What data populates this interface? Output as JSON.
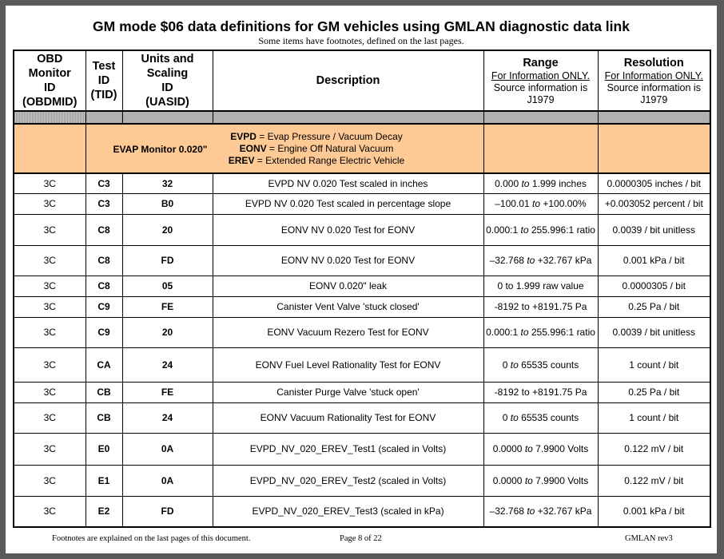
{
  "title": "GM mode $06 data definitions for GM vehicles using GMLAN diagnostic data link",
  "subtitle": "Some items have footnotes, defined on the last pages.",
  "columns": {
    "obdmid": [
      "OBD",
      "Monitor",
      "ID",
      "(OBDMID)"
    ],
    "tid": [
      "Test",
      "ID",
      "(TID)"
    ],
    "uasid": [
      "Units and",
      "Scaling",
      "ID",
      "(UASID)"
    ],
    "description": "Description",
    "range": {
      "title": "Range",
      "note": "For Information ONLY.",
      "source": "Source information is J1979"
    },
    "resolution": {
      "title": "Resolution",
      "note": "For Information ONLY.",
      "source": "Source information is J1979"
    }
  },
  "section": {
    "label": "EVAP Monitor 0.020\"",
    "lines": [
      {
        "abbr": "EVPD",
        "text": " = Evap Pressure / Vacuum Decay"
      },
      {
        "abbr": "EONV",
        "text": " = Engine Off Natural Vacuum"
      },
      {
        "abbr": "EREV",
        "text": " = Extended Range Electric Vehicle"
      }
    ],
    "color": "#fdca96"
  },
  "rows": [
    {
      "obdmid": "3C",
      "tid": "C3",
      "uasid": "32",
      "desc": "EVPD NV 0.020 Test scaled in inches",
      "r1": "0.000",
      "to": "to",
      "r2": "1.999 inches",
      "italic": true,
      "res": "0.0000305 inches / bit"
    },
    {
      "obdmid": "3C",
      "tid": "C3",
      "uasid": "B0",
      "desc": "EVPD NV 0.020 Test scaled in percentage slope",
      "r1": "–100.01",
      "to": "to",
      "r2": "+100.00%",
      "italic": true,
      "res": "+0.003052 percent / bit"
    },
    {
      "obdmid": "3C",
      "tid": "C8",
      "uasid": "20",
      "desc": "EONV NV 0.020 Test for EONV",
      "r1": "0.000:1",
      "to": "to",
      "r2": "255.996:1  ratio",
      "italic": true,
      "res": "0.0039 / bit unitless"
    },
    {
      "obdmid": "3C",
      "tid": "C8",
      "uasid": "FD",
      "desc": "EONV NV 0.020 Test for EONV",
      "r1": "–32.768",
      "to": "to",
      "r2": "+32.767 kPa",
      "italic": true,
      "res": "0.001 kPa / bit"
    },
    {
      "obdmid": "3C",
      "tid": "C8",
      "uasid": "05",
      "desc": "EONV 0.020\" leak",
      "r1": "0",
      "to": "to",
      "r2": "1.999 raw value",
      "italic": false,
      "res": "0.0000305 / bit"
    },
    {
      "obdmid": "3C",
      "tid": "C9",
      "uasid": "FE",
      "desc": "Canister Vent Valve 'stuck closed'",
      "r1": "-8192",
      "to": "to",
      "r2": "+8191.75 Pa",
      "italic": false,
      "res": "0.25 Pa / bit"
    },
    {
      "obdmid": "3C",
      "tid": "C9",
      "uasid": "20",
      "desc": "EONV Vacuum Rezero Test for EONV",
      "r1": "0.000:1",
      "to": "to",
      "r2": "255.996:1  ratio",
      "italic": true,
      "res": "0.0039 / bit unitless"
    },
    {
      "obdmid": "3C",
      "tid": "CA",
      "uasid": "24",
      "desc": "EONV Fuel Level Rationality Test for EONV",
      "r1": "0",
      "to": "to",
      "r2": "65535 counts",
      "italic": true,
      "res": "1 count / bit"
    },
    {
      "obdmid": "3C",
      "tid": "CB",
      "uasid": "FE",
      "desc": "Canister Purge Valve 'stuck open'",
      "r1": "-8192",
      "to": "to",
      "r2": "+8191.75 Pa",
      "italic": false,
      "res": "0.25 Pa / bit"
    },
    {
      "obdmid": "3C",
      "tid": "CB",
      "uasid": "24",
      "desc": "EONV Vacuum Rationality Test for EONV",
      "r1": "0",
      "to": "to",
      "r2": "65535 counts",
      "italic": true,
      "res": "1 count / bit"
    },
    {
      "obdmid": "3C",
      "tid": "E0",
      "uasid": "0A",
      "desc": "EVPD_NV_020_EREV_Test1 (scaled in Volts)",
      "r1": "0.0000",
      "to": "to",
      "r2": "7.9900 Volts",
      "italic": true,
      "res": "0.122 mV / bit"
    },
    {
      "obdmid": "3C",
      "tid": "E1",
      "uasid": "0A",
      "desc": "EVPD_NV_020_EREV_Test2 (scaled in Volts)",
      "r1": "0.0000",
      "to": "to",
      "r2": "7.9900 Volts",
      "italic": true,
      "res": "0.122 mV / bit"
    },
    {
      "obdmid": "3C",
      "tid": "E2",
      "uasid": "FD",
      "desc": "EVPD_NV_020_EREV_Test3 (scaled in kPa)",
      "r1": "–32.768",
      "to": "to",
      "r2": "+32.767 kPa",
      "italic": true,
      "res": "0.001 kPa / bit"
    }
  ],
  "footer": {
    "left": "Footnotes are explained on the last pages of this document.",
    "center": "Page 8 of 22",
    "right": "GMLAN  rev3"
  }
}
